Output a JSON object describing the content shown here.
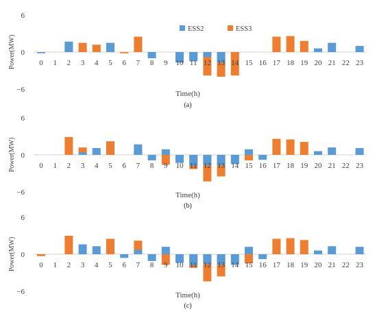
{
  "colors": {
    "ESS2": "#5B9BD5",
    "ESS3": "#ED7D31"
  },
  "legend": {
    "items": [
      "ESS2",
      "ESS3"
    ],
    "placement": "top-right"
  },
  "chart_data": [
    {
      "type": "bar",
      "subtitle": "(a)",
      "xlabel": "Time(h)",
      "ylabel": "Power(MW)",
      "ylim": [
        -6,
        6
      ],
      "yticks": [
        "6",
        "0",
        "−6"
      ],
      "categories": [
        "0",
        "1",
        "2",
        "3",
        "4",
        "5",
        "6",
        "7",
        "8",
        "9",
        "10",
        "11",
        "12",
        "13",
        "14",
        "15",
        "16",
        "17",
        "18",
        "19",
        "20",
        "21",
        "22",
        "23"
      ],
      "series": [
        {
          "name": "ESS2",
          "values": [
            -0.2,
            0,
            1.7,
            0,
            0,
            1.5,
            0,
            0,
            -1.0,
            0,
            -1.7,
            -1.5,
            -0.8,
            -1.7,
            0,
            0,
            0,
            0,
            0,
            0,
            0.6,
            1.5,
            0,
            1.0
          ]
        },
        {
          "name": "ESS3",
          "values": [
            0,
            0,
            1.4,
            1.5,
            1.2,
            0.8,
            -0.2,
            2.5,
            0,
            0,
            -1.3,
            -1.2,
            -3.8,
            -4.0,
            -3.8,
            0,
            0,
            2.5,
            2.6,
            1.8,
            0,
            0,
            0,
            0
          ]
        }
      ]
    },
    {
      "type": "bar",
      "subtitle": "(b)",
      "xlabel": "Time(h)",
      "ylabel": "Power(MW)",
      "ylim": [
        -6,
        6
      ],
      "yticks": [
        "6",
        "0",
        "−6"
      ],
      "categories": [
        "0",
        "1",
        "2",
        "3",
        "4",
        "5",
        "6",
        "7",
        "8",
        "9",
        "10",
        "11",
        "12",
        "13",
        "14",
        "15",
        "16",
        "17",
        "18",
        "19",
        "20",
        "21",
        "22",
        "23"
      ],
      "series": [
        {
          "name": "ESS2",
          "values": [
            0,
            0,
            0,
            0.4,
            1.1,
            0,
            0,
            1.7,
            -0.9,
            0.9,
            -1.3,
            -1.8,
            -1.7,
            -1.7,
            -1.5,
            0.9,
            -0.8,
            0,
            0,
            0,
            0.6,
            1.2,
            0,
            1.1
          ]
        },
        {
          "name": "ESS3",
          "values": [
            0,
            0,
            2.9,
            1.2,
            0,
            2.2,
            0,
            0.9,
            0,
            -1.6,
            0,
            -2.3,
            -4.3,
            -3.5,
            0,
            -0.9,
            0,
            2.6,
            2.5,
            2.1,
            0,
            0,
            0,
            0
          ]
        }
      ]
    },
    {
      "type": "bar",
      "subtitle": "(c)",
      "xlabel": "Time(h)",
      "ylabel": "Power(MW)",
      "ylim": [
        -6,
        6
      ],
      "yticks": [
        "6",
        "0",
        "−6"
      ],
      "categories": [
        "0",
        "1",
        "2",
        "3",
        "4",
        "5",
        "6",
        "7",
        "8",
        "9",
        "10",
        "11",
        "12",
        "13",
        "14",
        "15",
        "16",
        "17",
        "18",
        "19",
        "20",
        "21",
        "22",
        "23"
      ],
      "series": [
        {
          "name": "ESS2",
          "values": [
            0,
            0,
            0,
            1.6,
            1.3,
            0,
            -0.6,
            0.7,
            -1.1,
            1.2,
            -1.4,
            -1.8,
            -1.6,
            -1.7,
            -1.7,
            1.2,
            -0.8,
            0,
            0,
            0,
            0.6,
            1.3,
            0,
            1.2
          ]
        },
        {
          "name": "ESS3",
          "values": [
            -0.3,
            0,
            3.0,
            0,
            0,
            2.5,
            0,
            2.2,
            0,
            -1.7,
            0,
            -2.2,
            -4.4,
            -3.6,
            0,
            -1.5,
            0,
            2.5,
            2.6,
            2.3,
            0,
            0,
            0,
            0
          ]
        }
      ]
    }
  ]
}
